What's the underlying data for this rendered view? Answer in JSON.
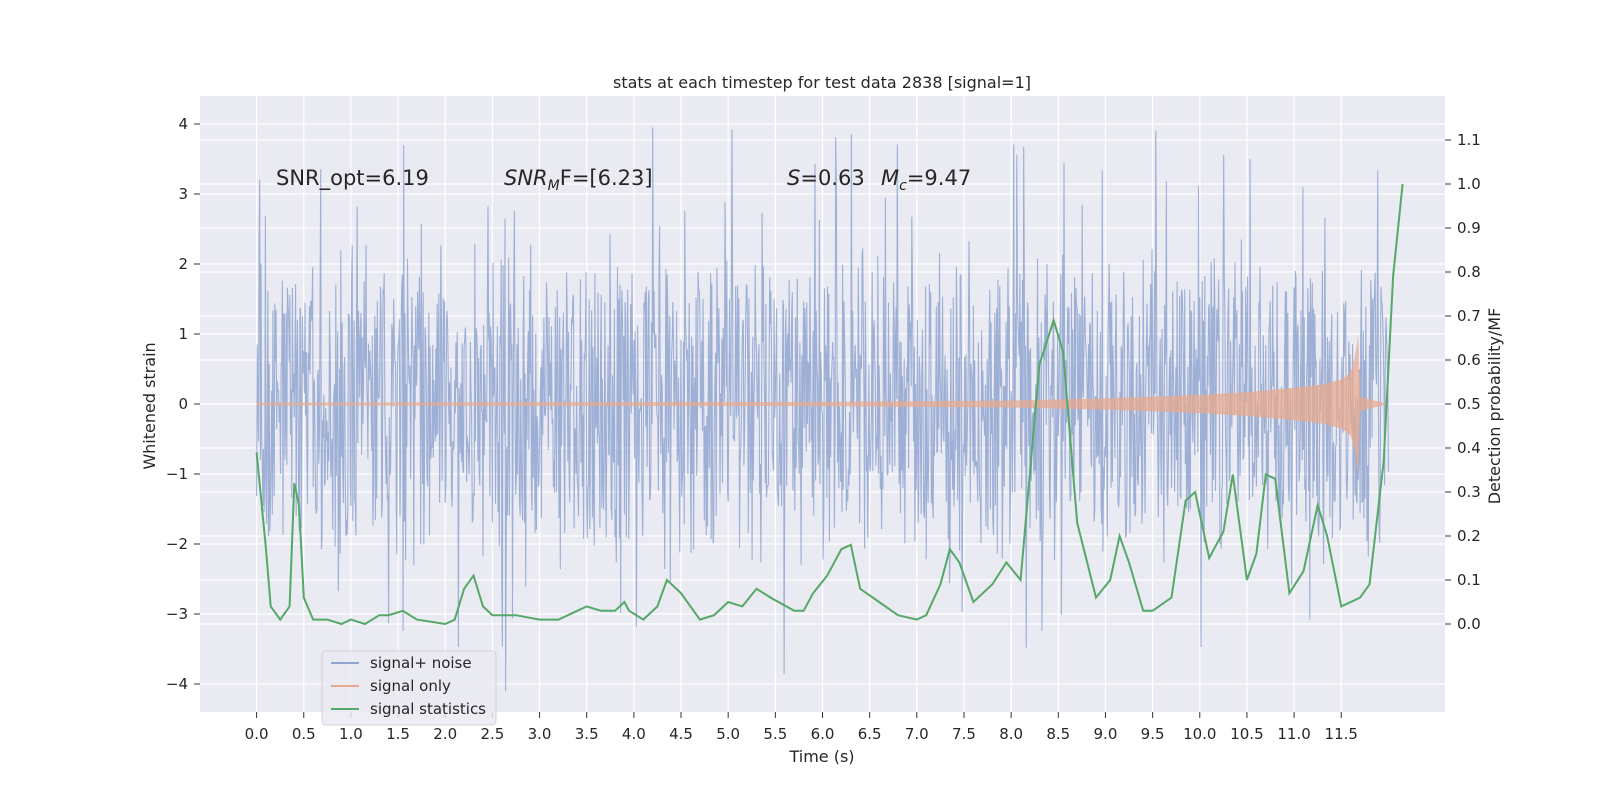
{
  "chart_data": {
    "type": "line",
    "title": "stats at each timestep for test data 2838 [signal=1]",
    "xlabel": "Time (s)",
    "ylabel_left": "Whitened strain",
    "ylabel_right": "Detection probability/MF",
    "xlim": [
      -0.6,
      12.6
    ],
    "ylim_left": [
      -4.4,
      4.4
    ],
    "ylim_right": [
      -0.2,
      1.2
    ],
    "x_ticks": [
      "0.0",
      "0.5",
      "1.0",
      "1.5",
      "2.0",
      "2.5",
      "3.0",
      "3.5",
      "4.0",
      "4.5",
      "5.0",
      "5.5",
      "6.0",
      "6.5",
      "7.0",
      "7.5",
      "8.0",
      "8.5",
      "9.0",
      "9.5",
      "10.0",
      "10.5",
      "11.0",
      "11.5"
    ],
    "y_ticks_left": [
      -4,
      -3,
      -2,
      -1,
      0,
      1,
      2,
      3,
      4
    ],
    "y_ticks_right": [
      "0.0",
      "0.1",
      "0.2",
      "0.3",
      "0.4",
      "0.5",
      "0.6",
      "0.7",
      "0.8",
      "0.9",
      "1.0",
      "1.1"
    ],
    "grid": true,
    "legend_position": "lower-left",
    "annotations": {
      "snr_opt": "SNR_opt=6.19",
      "snr_mf_label": "SNR",
      "snr_mf_sub": "M",
      "snr_mf_suffix": "F=[6.23]",
      "s_label": "S",
      "s_value": "=0.63",
      "mc_label": "M",
      "mc_sub": "c",
      "mc_value": "=9.47"
    },
    "series": [
      {
        "name": "signal+ noise",
        "color": "#8fa5d0",
        "description": "whitened noisy strain, t from 0 to 12 s, peaks mostly within about -2.7 to +3.7",
        "envelope": {
          "upper_typical": 2.4,
          "lower_typical": -2.4,
          "max": 3.95,
          "min": -4.1
        }
      },
      {
        "name": "signal only",
        "color": "#e8a98d",
        "description": "chirp signal growing in amplitude until merger near 11.7 s",
        "points": [
          [
            0,
            0.02
          ],
          [
            6,
            0.03
          ],
          [
            8,
            0.05
          ],
          [
            9,
            0.08
          ],
          [
            10,
            0.13
          ],
          [
            10.5,
            0.17
          ],
          [
            11,
            0.23
          ],
          [
            11.3,
            0.28
          ],
          [
            11.5,
            0.35
          ],
          [
            11.6,
            0.45
          ],
          [
            11.65,
            0.7
          ],
          [
            11.68,
            1.0
          ],
          [
            11.7,
            0.1
          ],
          [
            12,
            0.0
          ]
        ]
      },
      {
        "name": "signal statistics",
        "color": "#55a868",
        "points": [
          [
            0,
            0.39
          ],
          [
            0.1,
            0.17
          ],
          [
            0.15,
            0.04
          ],
          [
            0.25,
            0.01
          ],
          [
            0.35,
            0.04
          ],
          [
            0.4,
            0.32
          ],
          [
            0.45,
            0.27
          ],
          [
            0.5,
            0.06
          ],
          [
            0.6,
            0.01
          ],
          [
            0.75,
            0.01
          ],
          [
            0.9,
            0.0
          ],
          [
            1.0,
            0.01
          ],
          [
            1.15,
            0.0
          ],
          [
            1.3,
            0.02
          ],
          [
            1.4,
            0.02
          ],
          [
            1.55,
            0.03
          ],
          [
            1.7,
            0.01
          ],
          [
            2.0,
            0.0
          ],
          [
            2.1,
            0.01
          ],
          [
            2.2,
            0.08
          ],
          [
            2.3,
            0.11
          ],
          [
            2.4,
            0.04
          ],
          [
            2.5,
            0.02
          ],
          [
            2.75,
            0.02
          ],
          [
            3.0,
            0.01
          ],
          [
            3.2,
            0.01
          ],
          [
            3.4,
            0.03
          ],
          [
            3.5,
            0.04
          ],
          [
            3.65,
            0.03
          ],
          [
            3.8,
            0.03
          ],
          [
            3.9,
            0.05
          ],
          [
            3.95,
            0.03
          ],
          [
            4.1,
            0.01
          ],
          [
            4.25,
            0.04
          ],
          [
            4.35,
            0.1
          ],
          [
            4.5,
            0.07
          ],
          [
            4.7,
            0.01
          ],
          [
            4.85,
            0.02
          ],
          [
            5.0,
            0.05
          ],
          [
            5.15,
            0.04
          ],
          [
            5.3,
            0.08
          ],
          [
            5.45,
            0.06
          ],
          [
            5.7,
            0.03
          ],
          [
            5.8,
            0.03
          ],
          [
            5.9,
            0.07
          ],
          [
            6.05,
            0.11
          ],
          [
            6.2,
            0.17
          ],
          [
            6.3,
            0.18
          ],
          [
            6.4,
            0.08
          ],
          [
            6.6,
            0.05
          ],
          [
            6.8,
            0.02
          ],
          [
            7.0,
            0.01
          ],
          [
            7.1,
            0.02
          ],
          [
            7.25,
            0.09
          ],
          [
            7.35,
            0.17
          ],
          [
            7.45,
            0.14
          ],
          [
            7.6,
            0.05
          ],
          [
            7.8,
            0.09
          ],
          [
            7.95,
            0.14
          ],
          [
            8.1,
            0.1
          ],
          [
            8.3,
            0.59
          ],
          [
            8.45,
            0.69
          ],
          [
            8.55,
            0.62
          ],
          [
            8.7,
            0.23
          ],
          [
            8.9,
            0.06
          ],
          [
            9.05,
            0.1
          ],
          [
            9.15,
            0.2
          ],
          [
            9.25,
            0.14
          ],
          [
            9.4,
            0.03
          ],
          [
            9.5,
            0.03
          ],
          [
            9.7,
            0.06
          ],
          [
            9.85,
            0.28
          ],
          [
            9.95,
            0.3
          ],
          [
            10.1,
            0.15
          ],
          [
            10.25,
            0.21
          ],
          [
            10.35,
            0.34
          ],
          [
            10.5,
            0.1
          ],
          [
            10.6,
            0.16
          ],
          [
            10.7,
            0.34
          ],
          [
            10.8,
            0.33
          ],
          [
            10.95,
            0.07
          ],
          [
            11.1,
            0.12
          ],
          [
            11.25,
            0.27
          ],
          [
            11.35,
            0.2
          ],
          [
            11.5,
            0.04
          ],
          [
            11.7,
            0.06
          ],
          [
            11.8,
            0.09
          ],
          [
            11.95,
            0.37
          ],
          [
            12.05,
            0.79
          ],
          [
            12.15,
            1.0
          ]
        ]
      }
    ]
  }
}
